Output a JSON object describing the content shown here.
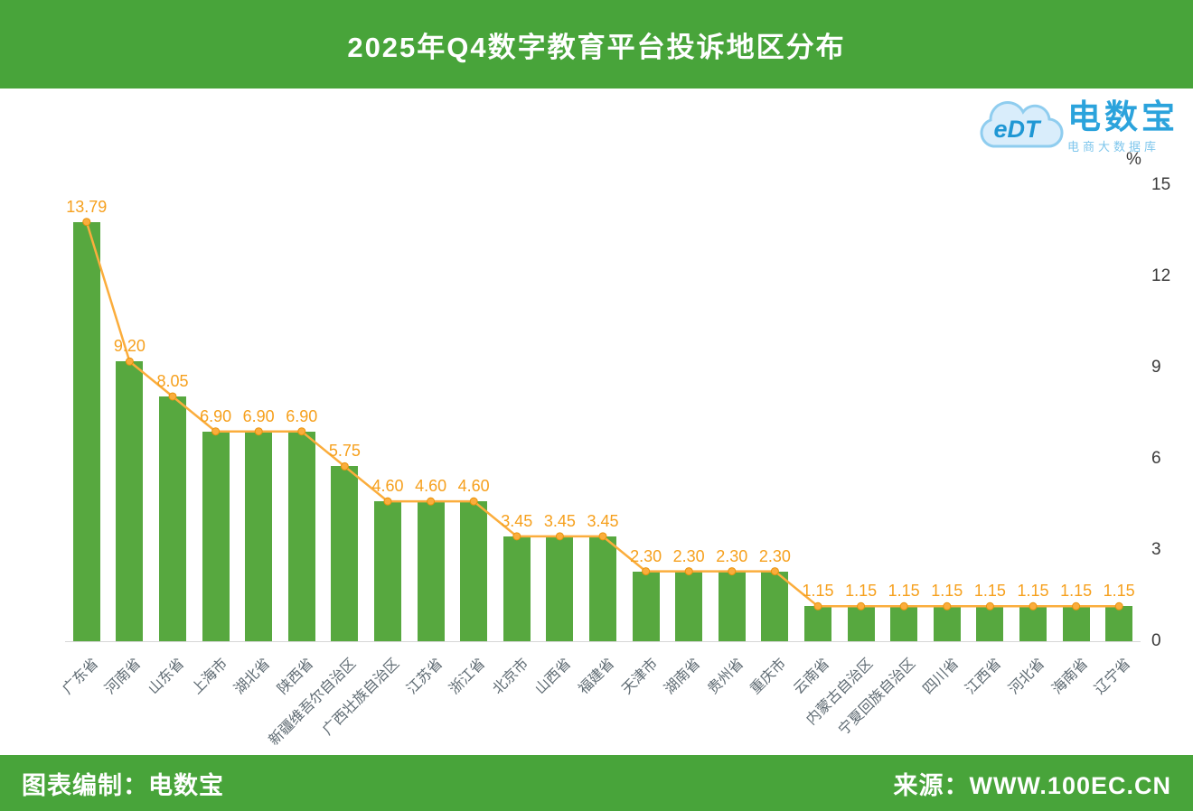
{
  "header": {
    "title": "2025年Q4数字教育平台投诉地区分布"
  },
  "logo": {
    "cloud_text": "eDT",
    "brand": "电数宝",
    "subtitle": "电商大数据库"
  },
  "theme": {
    "green": "#48A43A",
    "bar_green": "#57A83F",
    "label_orange": "#F6A01D",
    "line_orange": "#FBAD3C",
    "logo_blue": "#2BA3DC",
    "logo_light_blue": "#7EC6EC"
  },
  "chart_data": {
    "type": "bar",
    "title": "2025年Q4数字教育平台投诉地区分布",
    "unit": "%",
    "xlabel": "",
    "ylabel": "%",
    "ylim": [
      0,
      15
    ],
    "yticks": [
      0,
      3,
      6,
      9,
      12,
      15
    ],
    "grid": false,
    "legend_position": "none",
    "line_overlay": "same values as bars, orange line with point markers and data labels",
    "categories": [
      "广东省",
      "河南省",
      "山东省",
      "上海市",
      "湖北省",
      "陕西省",
      "新疆维吾尔自治区",
      "广西壮族自治区",
      "江苏省",
      "浙江省",
      "北京市",
      "山西省",
      "福建省",
      "天津市",
      "湖南省",
      "贵州省",
      "重庆市",
      "云南省",
      "内蒙古自治区",
      "宁夏回族自治区",
      "四川省",
      "江西省",
      "河北省",
      "海南省",
      "辽宁省"
    ],
    "values": [
      13.79,
      9.2,
      8.05,
      6.9,
      6.9,
      6.9,
      5.75,
      4.6,
      4.6,
      4.6,
      3.45,
      3.45,
      3.45,
      2.3,
      2.3,
      2.3,
      2.3,
      1.15,
      1.15,
      1.15,
      1.15,
      1.15,
      1.15,
      1.15,
      1.15
    ]
  },
  "footer": {
    "left": "图表编制：电数宝",
    "right": "来源：WWW.100EC.CN"
  }
}
